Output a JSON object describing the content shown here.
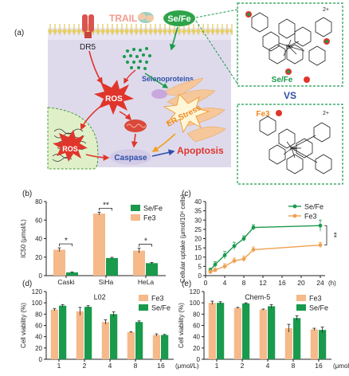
{
  "colors": {
    "orange": "#f5b98a",
    "green": "#1a9a4c",
    "red": "#e0352b",
    "blue": "#2f4fa8",
    "membrane": "#e9d36a",
    "cell": "#dcd6ea"
  },
  "panel_a": {
    "label": "(a)",
    "trail": "TRAIL",
    "sefe": "Se/Fe",
    "dr5": "DR5",
    "selenoproteins": "Selenoproteins",
    "ros_center": "ROS",
    "ros_nucleus": "ROS",
    "er_stress": "ER Stress",
    "caspase": "Caspase",
    "apoptosis": "Apoptosis",
    "structure_top_label": "Se/Fe",
    "structure_top_charge": "2+",
    "vs": "VS",
    "structure_bottom_label": "Fe3",
    "structure_bottom_charge": "2+",
    "fe_label": "Fe"
  },
  "chart_data": [
    {
      "panel": "(b)",
      "type": "bar",
      "ylabel": "IC50 (μmol/L)",
      "ylim": [
        0,
        80
      ],
      "yticks": [
        0,
        20,
        40,
        60,
        80
      ],
      "categories": [
        "Caski",
        "SiHa",
        "HeLa"
      ],
      "series": [
        {
          "name": "Fe3",
          "values": [
            28,
            67,
            27
          ],
          "errors": [
            2,
            1.5,
            2.5
          ]
        },
        {
          "name": "Se/Fe",
          "values": [
            3.5,
            19,
            13.5
          ],
          "errors": [
            0.5,
            0.8,
            0.8
          ]
        }
      ],
      "significance": [
        "*",
        "**",
        "*"
      ],
      "legend": "top-right"
    },
    {
      "panel": "(c)",
      "type": "line",
      "ylabel": "Cellular uptake (μmol/10⁸ cells)",
      "xlabel": "(h)",
      "xlim": [
        0,
        25
      ],
      "xticks": [
        0,
        4,
        8,
        12,
        16,
        20,
        24
      ],
      "ylim": [
        0,
        40
      ],
      "yticks": [
        0,
        5,
        10,
        15,
        20,
        25,
        30,
        35,
        40
      ],
      "series": [
        {
          "name": "Se/Fe",
          "x": [
            1,
            2,
            4,
            6,
            8,
            10,
            24
          ],
          "y": [
            3,
            6,
            11,
            16,
            20,
            26,
            27
          ],
          "errors": [
            1,
            1.5,
            2,
            2,
            1.5,
            1.5,
            3
          ]
        },
        {
          "name": "Fe3",
          "x": [
            1,
            2,
            4,
            6,
            8,
            10,
            24
          ],
          "y": [
            2,
            3,
            5,
            8,
            9,
            14,
            16.5
          ],
          "errors": [
            1,
            1,
            1.5,
            1.5,
            1.5,
            1.5,
            1.5
          ]
        }
      ],
      "significance": "**",
      "legend": "top-right"
    },
    {
      "panel": "(d)",
      "type": "bar",
      "title": "L02",
      "ylabel": "Cell viability (%)",
      "xlabel": "(μmol/L)",
      "ylim": [
        0,
        120
      ],
      "yticks": [
        0,
        20,
        40,
        60,
        80,
        100,
        120
      ],
      "categories": [
        "1",
        "2",
        "4",
        "8",
        "16"
      ],
      "series": [
        {
          "name": "Fe3",
          "values": [
            88,
            85,
            66,
            48,
            43
          ],
          "errors": [
            2,
            7,
            4,
            1,
            2
          ]
        },
        {
          "name": "Se/Fe",
          "values": [
            95,
            93,
            80,
            66,
            43
          ],
          "errors": [
            2,
            2,
            4,
            2,
            1
          ]
        }
      ],
      "legend": "top-right"
    },
    {
      "panel": "(e)",
      "type": "bar",
      "title": "Chem-5",
      "ylabel": "Cell viability (%)",
      "xlabel": "(μmol/L)",
      "ylim": [
        0,
        120
      ],
      "yticks": [
        0,
        20,
        40,
        60,
        80,
        100,
        120
      ],
      "categories": [
        "1",
        "2",
        "4",
        "8",
        "16"
      ],
      "series": [
        {
          "name": "Fe3",
          "values": [
            100,
            91,
            88,
            55,
            53
          ],
          "errors": [
            3,
            1,
            1,
            7,
            2
          ]
        },
        {
          "name": "Se/Fe",
          "values": [
            100,
            99,
            94,
            73,
            52
          ],
          "errors": [
            2,
            1,
            3,
            4,
            5
          ]
        }
      ],
      "legend": "top-right"
    }
  ]
}
